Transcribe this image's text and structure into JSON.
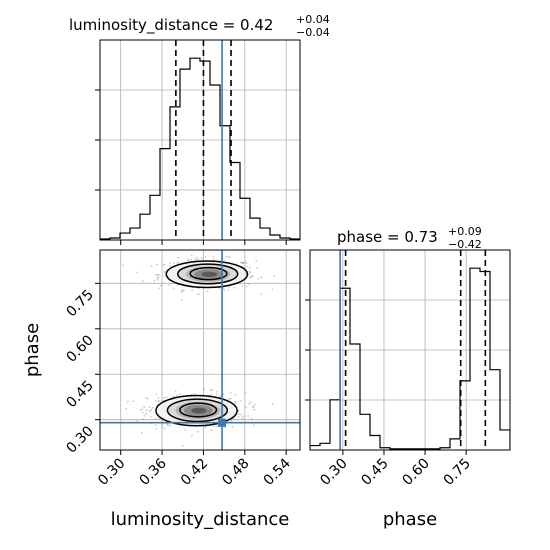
{
  "figure": {
    "x_param": "luminosity_distance",
    "y_param": "phase"
  },
  "titles": {
    "lum_name": "luminosity_distance = 0.42",
    "lum_plus": "+0.04",
    "lum_minus": "−0.04",
    "phase_name": "phase = 0.73",
    "phase_plus": "+0.09",
    "phase_minus": "−0.42"
  },
  "colors": {
    "truth": "#3b78b0",
    "hist": "#000000",
    "grid": "#b0b0b0",
    "points": "#9a9a9a"
  },
  "chart_data": [
    {
      "panel": "marginal-luminosity_distance",
      "type": "bar",
      "histtype": "step",
      "title": "luminosity_distance = 0.42 (+0.04 / −0.04)",
      "xlim": [
        0.27,
        0.56
      ],
      "x_ticks": [
        0.3,
        0.36,
        0.42,
        0.48,
        0.54
      ],
      "bin_edges": [
        0.27,
        0.2845,
        0.299,
        0.3135,
        0.328,
        0.3425,
        0.357,
        0.3715,
        0.386,
        0.4005,
        0.415,
        0.4295,
        0.444,
        0.4585,
        0.473,
        0.4875,
        0.502,
        0.5165,
        0.531,
        0.5455,
        0.56
      ],
      "counts": [
        1,
        2,
        7,
        12,
        26,
        45,
        92,
        134,
        172,
        183,
        180,
        156,
        115,
        78,
        42,
        22,
        12,
        5,
        2,
        1
      ],
      "quantile_lines": [
        0.38,
        0.42,
        0.46
      ],
      "truth": 0.447,
      "grid": true
    },
    {
      "panel": "marginal-phase",
      "type": "bar",
      "histtype": "step",
      "title": "phase = 0.73 (+0.09 / −0.42)",
      "xlim": [
        0.18,
        0.91
      ],
      "x_ticks": [
        0.3,
        0.45,
        0.6,
        0.75
      ],
      "bin_edges": [
        0.18,
        0.2165,
        0.253,
        0.2895,
        0.326,
        0.3625,
        0.399,
        0.4355,
        0.472,
        0.5085,
        0.545,
        0.5815,
        0.618,
        0.6545,
        0.691,
        0.7275,
        0.764,
        0.8005,
        0.837,
        0.8735,
        0.91
      ],
      "counts": [
        4,
        6,
        45,
        145,
        95,
        32,
        13,
        2,
        1,
        1,
        1,
        1,
        1,
        2,
        10,
        62,
        163,
        160,
        72,
        18
      ],
      "quantile_lines": [
        0.31,
        0.73,
        0.82
      ],
      "truth": 0.29,
      "grid": true
    },
    {
      "panel": "joint-luminosity_distance-phase",
      "type": "scatter",
      "xlabel": "luminosity_distance",
      "ylabel": "phase",
      "xlim": [
        0.27,
        0.56
      ],
      "ylim": [
        0.2,
        0.86
      ],
      "x_ticks": [
        0.3,
        0.36,
        0.42,
        0.48,
        0.54
      ],
      "y_ticks": [
        0.3,
        0.45,
        0.6,
        0.75
      ],
      "modes": [
        {
          "center_x": 0.425,
          "center_y": 0.78,
          "spread_x": 0.028,
          "spread_y": 0.022,
          "weight": 0.48
        },
        {
          "center_x": 0.41,
          "center_y": 0.33,
          "spread_x": 0.028,
          "spread_y": 0.025,
          "weight": 0.52
        }
      ],
      "truth": {
        "x": 0.447,
        "y": 0.29
      },
      "contours": "density levels (filled shading + 3 line levels per mode)",
      "grid": true
    }
  ]
}
